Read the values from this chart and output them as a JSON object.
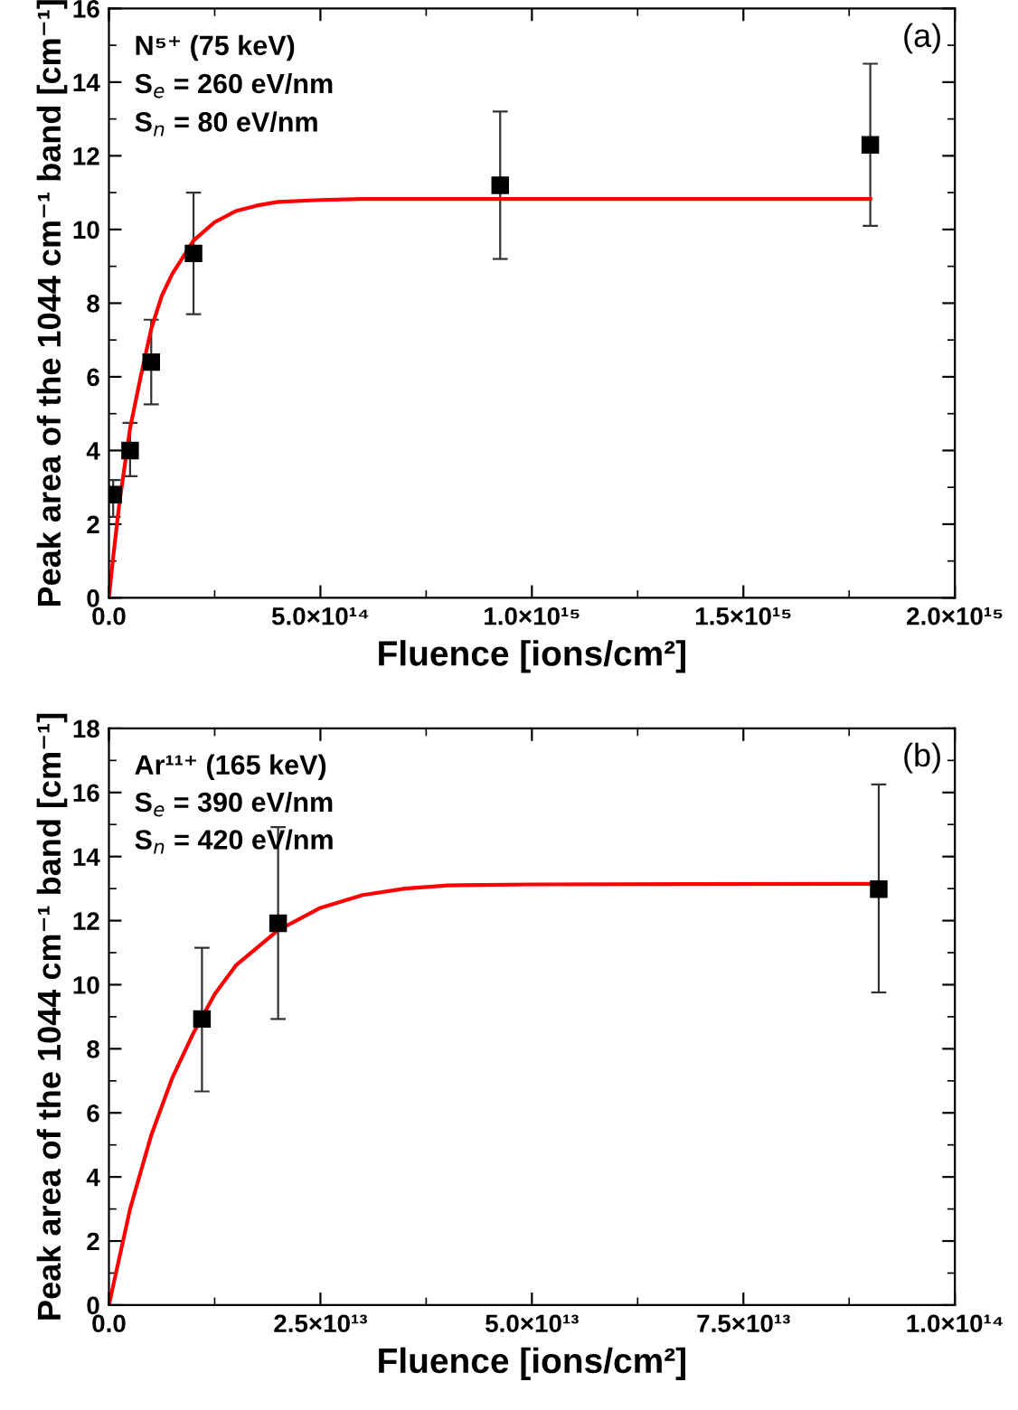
{
  "chart_data": [
    {
      "type": "scatter",
      "xlabel": "Fluence [ions/cm²]",
      "ylabel": "Peak area of the 1044 cm⁻¹ band [cm⁻¹]",
      "annotations": [
        "(a)",
        "N⁵⁺ (75 keV)",
        "S$_{e}$ = 260 eV/nm",
        "S$_{n}$ = 80 eV/nm"
      ],
      "xlim": [
        0,
        2000000000000000.0
      ],
      "ylim": [
        0,
        16
      ],
      "xticks": [
        {
          "value": 0,
          "label": "0.0"
        },
        {
          "value": 250000000000000.0,
          "label": null
        },
        {
          "value": 500000000000000.0,
          "label": "5.0×10¹⁴"
        },
        {
          "value": 750000000000000.0,
          "label": null
        },
        {
          "value": 1000000000000000.0,
          "label": "1.0×10¹⁵"
        },
        {
          "value": 1250000000000000.0,
          "label": null
        },
        {
          "value": 1500000000000000.0,
          "label": "1.5×10¹⁵"
        },
        {
          "value": 1750000000000000.0,
          "label": null
        },
        {
          "value": 2000000000000000.0,
          "label": "2.0×10¹⁵"
        }
      ],
      "yticks": [
        0,
        {
          "value": 1,
          "label": null
        },
        2,
        {
          "value": 3,
          "label": null
        },
        4,
        {
          "value": 5,
          "label": null
        },
        6,
        {
          "value": 7,
          "label": null
        },
        8,
        {
          "value": 9,
          "label": null
        },
        10,
        {
          "value": 11,
          "label": null
        },
        12,
        {
          "value": 13,
          "label": null
        },
        14,
        {
          "value": 15,
          "label": null
        },
        16
      ],
      "grid": false,
      "marker": "square",
      "series": [
        {
          "color": "#000000",
          "x": [
            10000000000000.0,
            50000000000000.0,
            100000000000000.0,
            200000000000000.0,
            925000000000000.0,
            1800000000000000.0
          ],
          "values": [
            2.8,
            4.0,
            6.4,
            9.35,
            11.2,
            12.3
          ],
          "errors": [
            [
              2.2,
              3.2
            ],
            [
              3.3,
              4.75
            ],
            [
              5.25,
              7.55
            ],
            [
              7.7,
              11.0
            ],
            [
              9.2,
              13.2
            ],
            [
              10.1,
              14.5
            ]
          ]
        },
        {
          "type": "line",
          "color": "#ff0000",
          "marker": "none",
          "x": [
            0,
            10000000000000.0,
            25000000000000.0,
            50000000000000.0,
            75000000000000.0,
            100000000000000.0,
            125000000000000.0,
            150000000000000.0,
            200000000000000.0,
            250000000000000.0,
            300000000000000.0,
            350000000000000.0,
            400000000000000.0,
            500000000000000.0,
            600000000000000.0,
            1000000000000000.0,
            1800000000000000.0
          ],
          "values": [
            0,
            1.1,
            2.6,
            4.6,
            6.0,
            7.3,
            8.2,
            8.8,
            9.7,
            10.2,
            10.5,
            10.65,
            10.75,
            10.8,
            10.83,
            10.83,
            10.83
          ]
        }
      ]
    },
    {
      "type": "scatter",
      "xlabel": "Fluence [ions/cm²]",
      "ylabel": "Peak area of the 1044 cm⁻¹ band [cm⁻¹]",
      "annotations": [
        "(b)",
        "Ar¹¹⁺ (165 keV)",
        "S$_{e}$ = 390 eV/nm",
        "S$_{n}$ = 420 eV/nm"
      ],
      "xlim": [
        0,
        100000000000000.0
      ],
      "ylim": [
        0,
        18
      ],
      "xticks": [
        {
          "value": 0,
          "label": "0.0"
        },
        {
          "value": 12500000000000.0,
          "label": null
        },
        {
          "value": 25000000000000.0,
          "label": "2.5×10¹³"
        },
        {
          "value": 37500000000000.0,
          "label": null
        },
        {
          "value": 50000000000000.0,
          "label": "5.0×10¹³"
        },
        {
          "value": 62500000000000.0,
          "label": null
        },
        {
          "value": 75000000000000.0,
          "label": "7.5×10¹³"
        },
        {
          "value": 87500000000000.0,
          "label": null
        },
        {
          "value": 100000000000000.0,
          "label": "1.0×10¹⁴"
        }
      ],
      "yticks": [
        0,
        {
          "value": 1,
          "label": null
        },
        2,
        {
          "value": 3,
          "label": null
        },
        4,
        {
          "value": 5,
          "label": null
        },
        6,
        {
          "value": 7,
          "label": null
        },
        8,
        {
          "value": 9,
          "label": null
        },
        10,
        {
          "value": 11,
          "label": null
        },
        12,
        {
          "value": 13,
          "label": null
        },
        14,
        {
          "value": 15,
          "label": null
        },
        16,
        {
          "value": 17,
          "label": null
        },
        18
      ],
      "grid": false,
      "marker": "square",
      "series": [
        {
          "color": "#000000",
          "x": [
            11000000000000.0,
            20000000000000.0,
            91000000000000.0
          ],
          "values": [
            8.93,
            11.92,
            12.98
          ],
          "errors": [
            [
              6.67,
              11.15
            ],
            [
              8.93,
              14.92
            ],
            [
              9.76,
              16.25
            ]
          ]
        },
        {
          "type": "line",
          "color": "#ff0000",
          "marker": "none",
          "x": [
            0,
            2500000000000.0,
            5000000000000.0,
            7500000000000.0,
            10000000000000.0,
            12500000000000.0,
            15000000000000.0,
            20000000000000.0,
            25000000000000.0,
            30000000000000.0,
            35000000000000.0,
            40000000000000.0,
            50000000000000.0,
            91000000000000.0
          ],
          "values": [
            0,
            3.0,
            5.3,
            7.1,
            8.5,
            9.7,
            10.6,
            11.7,
            12.4,
            12.8,
            13.0,
            13.1,
            13.13,
            13.15
          ]
        }
      ]
    }
  ]
}
